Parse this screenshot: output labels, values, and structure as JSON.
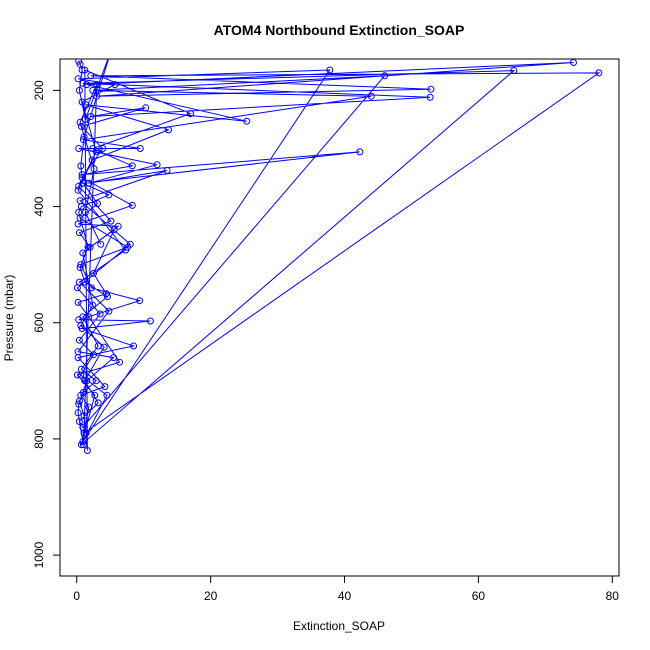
{
  "chart_data": {
    "type": "line",
    "title": "ATOM4 Northbound Extinction_SOAP",
    "xlabel": "Extinction_SOAP",
    "ylabel": "Pressure (mbar)",
    "xlim": [
      -2.5,
      81
    ],
    "ylim": [
      1036,
      146
    ],
    "y_reversed": true,
    "x_ticks": [
      0,
      20,
      40,
      60,
      80
    ],
    "y_ticks": [
      200,
      400,
      600,
      800,
      1000
    ],
    "marker": "open-circle",
    "series": [
      {
        "color": "#0000ff",
        "points": [
          [
            0.3,
            150
          ],
          [
            0.5,
            155
          ],
          [
            0.8,
            165
          ],
          [
            0.4,
            200
          ],
          [
            1.3,
            250
          ],
          [
            5.2,
            130
          ],
          [
            1.1,
            280
          ],
          [
            0.6,
            330
          ],
          [
            0.9,
            360
          ],
          [
            4.8,
            380
          ],
          [
            0.7,
            400
          ],
          [
            0.3,
            410
          ],
          [
            1.7,
            470
          ],
          [
            0.5,
            505
          ],
          [
            1.2,
            530
          ],
          [
            4.6,
            555
          ],
          [
            0.9,
            590
          ],
          [
            3.2,
            640
          ],
          [
            0.7,
            680
          ],
          [
            2.9,
            700
          ],
          [
            1.0,
            720
          ],
          [
            0.4,
            735
          ],
          [
            1.1,
            760
          ],
          [
            1.4,
            790
          ],
          [
            1.6,
            820
          ],
          [
            1.2,
            165
          ],
          [
            17.0,
            240
          ],
          [
            2.4,
            300
          ],
          [
            8.3,
            330
          ],
          [
            0.8,
            345
          ],
          [
            42.3,
            306
          ],
          [
            1.0,
            360
          ],
          [
            3.1,
            395
          ],
          [
            0.5,
            420
          ],
          [
            7.6,
            470
          ],
          [
            0.6,
            500
          ],
          [
            2.2,
            540
          ],
          [
            9.4,
            562
          ],
          [
            0.3,
            595
          ],
          [
            11.0,
            597
          ],
          [
            0.8,
            610
          ],
          [
            8.5,
            640
          ],
          [
            0.2,
            660
          ],
          [
            4.2,
            710
          ],
          [
            0.6,
            725
          ],
          [
            1.8,
            745
          ],
          [
            1.1,
            790
          ],
          [
            78.0,
            170
          ],
          [
            2.1,
            175
          ],
          [
            52.9,
            198
          ],
          [
            3.0,
            210
          ],
          [
            74.2,
            152
          ],
          [
            1.5,
            190
          ],
          [
            25.4,
            253
          ],
          [
            1.4,
            225
          ],
          [
            13.7,
            268
          ],
          [
            2.3,
            320
          ],
          [
            0.3,
            365
          ],
          [
            5.1,
            425
          ],
          [
            0.4,
            445
          ],
          [
            2.0,
            470
          ],
          [
            5.6,
            440
          ],
          [
            2.5,
            515
          ],
          [
            4.4,
            550
          ],
          [
            0.2,
            565
          ],
          [
            1.8,
            590
          ],
          [
            6.4,
            668
          ],
          [
            0.1,
            690
          ],
          [
            2.7,
            725
          ],
          [
            0.7,
            810
          ],
          [
            65.3,
            166
          ],
          [
            0.9,
            188
          ],
          [
            52.8,
            212
          ],
          [
            2.1,
            245
          ],
          [
            10.3,
            230
          ],
          [
            0.7,
            262
          ],
          [
            3.9,
            300
          ],
          [
            0.8,
            350
          ],
          [
            8.3,
            398
          ],
          [
            0.2,
            430
          ],
          [
            6.2,
            434
          ],
          [
            0.9,
            480
          ],
          [
            2.4,
            570
          ],
          [
            0.6,
            605
          ],
          [
            4.1,
            642
          ],
          [
            1.2,
            700
          ],
          [
            3.2,
            738
          ],
          [
            0.4,
            770
          ],
          [
            0.9,
            780
          ],
          [
            46.0,
            175
          ],
          [
            2.4,
            200
          ],
          [
            44.0,
            210
          ],
          [
            1.0,
            285
          ],
          [
            9.5,
            300
          ],
          [
            0.3,
            300
          ],
          [
            12.0,
            328
          ],
          [
            1.8,
            360
          ],
          [
            13.5,
            338
          ],
          [
            0.5,
            390
          ],
          [
            8.0,
            465
          ],
          [
            0.1,
            540
          ],
          [
            3.5,
            585
          ],
          [
            0.4,
            630
          ],
          [
            2.5,
            655
          ],
          [
            0.6,
            690
          ],
          [
            4.5,
            725
          ],
          [
            0.9,
            805
          ],
          [
            37.8,
            165
          ],
          [
            0.2,
            180
          ],
          [
            5.7,
            190
          ],
          [
            0.8,
            220
          ],
          [
            2.9,
            305
          ],
          [
            0.2,
            372
          ],
          [
            7.3,
            475
          ],
          [
            0.4,
            530
          ],
          [
            4.8,
            580
          ],
          [
            0.2,
            650
          ],
          [
            5.5,
            660
          ],
          [
            1.5,
            700
          ],
          [
            0.3,
            740
          ],
          [
            0.2,
            755
          ],
          [
            1.0,
            810
          ],
          [
            3.0,
            190
          ],
          [
            0.5,
            255
          ],
          [
            2.6,
            335
          ],
          [
            1.3,
            410
          ],
          [
            3.6,
            465
          ]
        ]
      }
    ]
  }
}
